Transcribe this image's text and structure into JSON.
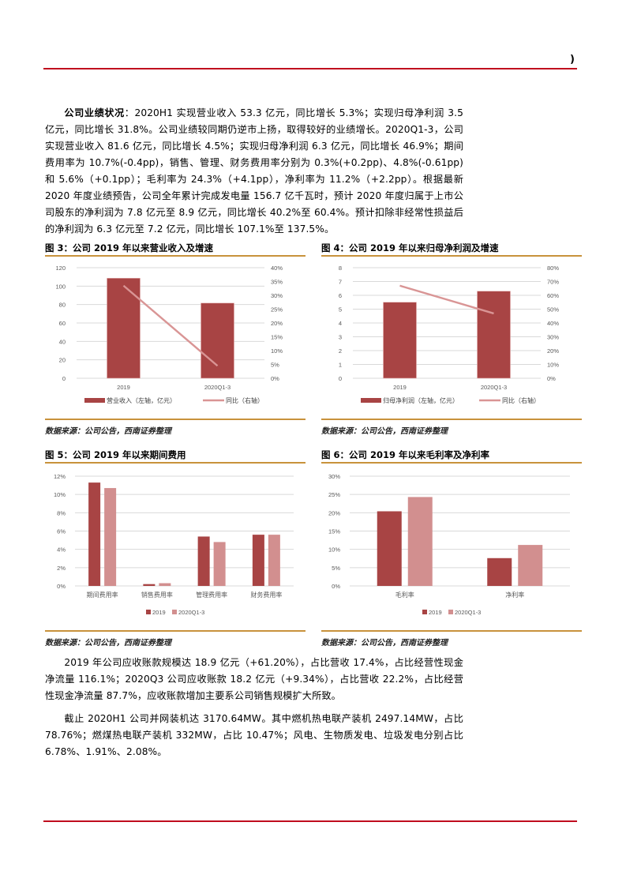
{
  "header": {
    "mark": ")"
  },
  "paragraphs": {
    "p1": {
      "lead": "公司业绩状况",
      "body": "：2020H1 实现营业收入 53.3 亿元，同比增长 5.3%；实现归母净利润 3.5 亿元，同比增长 31.8%。公司业绩较同期仍逆市上扬，取得较好的业绩增长。2020Q1-3，公司实现营业收入 81.6 亿元，同比增长 4.5%；实现归母净利润 6.3 亿元，同比增长 46.9%；期间费用率为 10.7%(-0.4pp)，销售、管理、财务费用率分别为 0.3%(+0.2pp)、4.8%(-0.61pp) 和 5.6%（+0.1pp）；毛利率为 24.3%（+4.1pp），净利率为 11.2%（+2.2pp）。根据最新 2020 年度业绩预告，公司全年累计完成发电量 156.7 亿千瓦时，预计 2020 年度归属于上市公司股东的净利润为 7.8 亿元至 8.9 亿元，同比增长 40.2%至 60.4%。预计扣除非经常性损益后的净利润为 6.3 亿元至 7.2 亿元，同比增长 107.1%至 137.5%。"
    },
    "p2": "2019 年公司应收账款规模达 18.9 亿元（+61.20%），占比营收 17.4%，占比经营性现金净流量 116.1%；2020Q3 公司应收账款 18.2 亿元（+9.34%），占比营收 22.2%，占比经营性现金净流量 87.7%，应收账款增加主要系公司销售规模扩大所致。",
    "p3": "截止 2020H1 公司并网装机达 3170.64MW。其中燃机热电联产装机 2497.14MW，占比 78.76%；燃煤热电联产装机 332MW，占比 10.47%；风电、生物质发电、垃圾发电分别占比 6.78%、1.91%、2.08%。"
  },
  "figures": {
    "fig3": {
      "title": "图 3：公司 2019 年以来营业收入及增速",
      "source": "数据来源：公司公告，西南证券整理"
    },
    "fig4": {
      "title": "图 4：公司 2019 年以来归母净利润及增速",
      "source": "数据来源：公司公告，西南证券整理"
    },
    "fig5": {
      "title": "图 5：公司 2019 年以来期间费用",
      "source": "数据来源：公司公告，西南证券整理"
    },
    "fig6": {
      "title": "图 6：公司 2019 年以来毛利率及净利率",
      "source": "数据来源：公司公告，西南证券整理"
    }
  },
  "colors": {
    "bar_dark": "#a84444",
    "bar_light": "#d28f8f",
    "line": "#d99595",
    "rule_red": "#c00d1e",
    "rule_gold": "#c8923c",
    "grid": "#d9d9d9"
  },
  "chart_data": [
    {
      "id": "fig3",
      "type": "bar+line",
      "title": "图 3：公司 2019 年以来营业收入及增速",
      "categories": [
        "2019",
        "2020Q1-3"
      ],
      "series": [
        {
          "name": "营业收入（左轴，亿元）",
          "type": "bar",
          "axis": "left",
          "values": [
            108.6,
            81.6
          ]
        },
        {
          "name": "同比（右轴）",
          "type": "line",
          "axis": "right",
          "values": [
            0.335,
            0.045
          ]
        }
      ],
      "left_axis": {
        "min": 0,
        "max": 120,
        "ticks": [
          "0",
          "20",
          "40",
          "60",
          "80",
          "100",
          "120"
        ]
      },
      "right_axis": {
        "min": 0,
        "max": 0.4,
        "ticks": [
          "0%",
          "5%",
          "10%",
          "15%",
          "20%",
          "25%",
          "30%",
          "35%",
          "40%"
        ]
      },
      "legend": [
        "营业收入（左轴，亿元）",
        "同比（右轴）"
      ],
      "legend_position": "bottom",
      "grid": true
    },
    {
      "id": "fig4",
      "type": "bar+line",
      "title": "图 4：公司 2019 年以来归母净利润及增速",
      "categories": [
        "2019",
        "2020Q1-3"
      ],
      "series": [
        {
          "name": "归母净利润（左轴，亿元）",
          "type": "bar",
          "axis": "left",
          "values": [
            5.5,
            6.3
          ]
        },
        {
          "name": "同比（右轴）",
          "type": "line",
          "axis": "right",
          "values": [
            0.67,
            0.469
          ]
        }
      ],
      "left_axis": {
        "min": 0,
        "max": 8,
        "ticks": [
          "0",
          "1",
          "2",
          "3",
          "4",
          "5",
          "6",
          "7",
          "8"
        ]
      },
      "right_axis": {
        "min": 0,
        "max": 0.8,
        "ticks": [
          "0%",
          "10%",
          "20%",
          "30%",
          "40%",
          "50%",
          "60%",
          "70%",
          "80%"
        ]
      },
      "legend": [
        "归母净利润（左轴，亿元）",
        "同比（右轴）"
      ],
      "legend_position": "bottom",
      "grid": true
    },
    {
      "id": "fig5",
      "type": "bar",
      "title": "图 5：公司 2019 年以来期间费用",
      "categories": [
        "期间费用率",
        "销售费用率",
        "管理费用率",
        "财务费用率"
      ],
      "series": [
        {
          "name": "2019",
          "values": [
            0.113,
            0.002,
            0.054,
            0.056
          ]
        },
        {
          "name": "2020Q1-3",
          "values": [
            0.107,
            0.003,
            0.048,
            0.056
          ]
        }
      ],
      "y_axis": {
        "min": 0,
        "max": 0.12,
        "ticks": [
          "0%",
          "2%",
          "4%",
          "6%",
          "8%",
          "10%",
          "12%"
        ]
      },
      "legend": [
        "2019",
        "2020Q1-3"
      ],
      "legend_position": "bottom",
      "grid": true
    },
    {
      "id": "fig6",
      "type": "bar",
      "title": "图 6：公司 2019 年以来毛利率及净利率",
      "categories": [
        "毛利率",
        "净利率"
      ],
      "series": [
        {
          "name": "2019",
          "values": [
            0.204,
            0.076
          ]
        },
        {
          "name": "2020Q1-3",
          "values": [
            0.243,
            0.112
          ]
        }
      ],
      "y_axis": {
        "min": 0,
        "max": 0.3,
        "ticks": [
          "0%",
          "5%",
          "10%",
          "15%",
          "20%",
          "25%",
          "30%"
        ]
      },
      "legend": [
        "2019",
        "2020Q1-3"
      ],
      "legend_position": "bottom",
      "grid": true
    }
  ]
}
